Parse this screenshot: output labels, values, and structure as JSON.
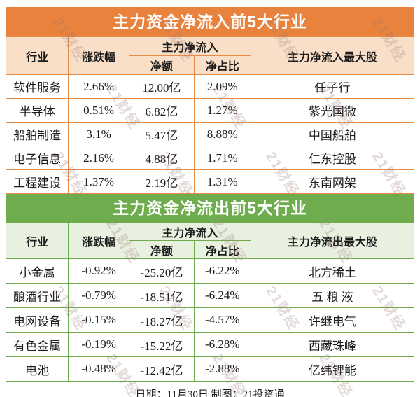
{
  "watermark": "21财经",
  "colors": {
    "orange": "#E8823C",
    "orange_header_bg": "#FADFC8",
    "green": "#6EAC4E",
    "green_header_bg": "#E8F0DF",
    "title_text": "#FFFFFF",
    "body_text": "#1C1C1C"
  },
  "chart_data": [
    {
      "type": "table",
      "title": "主力资金净流入前5大行业",
      "headers": {
        "industry": "行业",
        "change": "涨跌幅",
        "group": "主力净流入",
        "net_amount": "净额",
        "net_ratio": "净占比",
        "top_stock": "主力净流入最大股"
      },
      "rows": [
        [
          "软件服务",
          "2.66%",
          "12.00亿",
          "2.09%",
          "任子行"
        ],
        [
          "半导体",
          "0.51%",
          "6.82亿",
          "1.27%",
          "紫光国微"
        ],
        [
          "船舶制造",
          "3.1%",
          "5.47亿",
          "8.88%",
          "中国船舶"
        ],
        [
          "电子信息",
          "2.16%",
          "4.88亿",
          "1.71%",
          "仁东控股"
        ],
        [
          "工程建设",
          "1.37%",
          "2.19亿",
          "1.31%",
          "东南网架"
        ]
      ]
    },
    {
      "type": "table",
      "title": "主力资金净流出前5大行业",
      "headers": {
        "industry": "行业",
        "change": "涨跌幅",
        "group": "主力净流入",
        "net_amount": "净额",
        "net_ratio": "净占比",
        "top_stock": "主力净流出最大股"
      },
      "rows": [
        [
          "小金属",
          "-0.92%",
          "-25.20亿",
          "-6.22%",
          "北方稀土"
        ],
        [
          "酿酒行业",
          "-0.79%",
          "-18.51亿",
          "-6.24%",
          "五 粮 液"
        ],
        [
          "电网设备",
          "-0.15%",
          "-18.27亿",
          "-4.57%",
          "许继电气"
        ],
        [
          "有色金属",
          "-0.19%",
          "-15.22亿",
          "-6.28%",
          "西藏珠峰"
        ],
        [
          "电池",
          "-0.48%",
          "-12.42亿",
          "-2.88%",
          "亿纬锂能"
        ]
      ]
    }
  ],
  "footer": {
    "label": "日期：11月30日  制图：21投资通"
  }
}
